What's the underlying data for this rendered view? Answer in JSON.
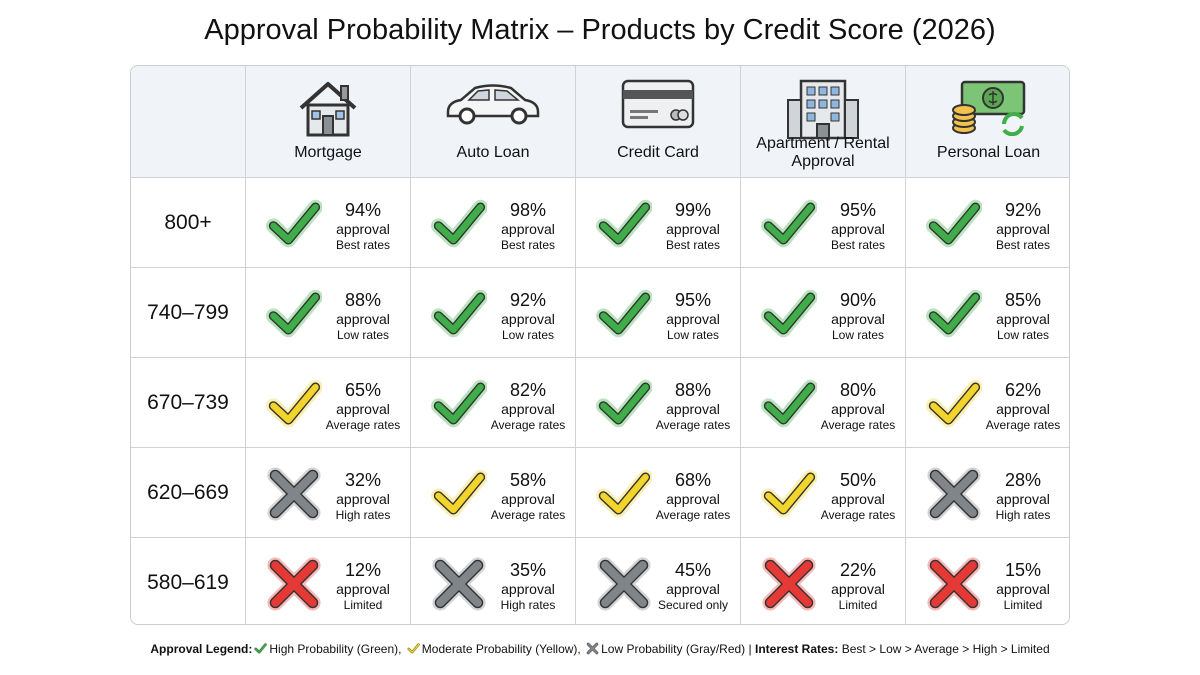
{
  "title": "Approval Probability Matrix – Products by Credit Score (2026)",
  "columns": [
    "Mortgage",
    "Auto Loan",
    "Credit Card",
    "Apartment / Rental Approval",
    "Personal Loan"
  ],
  "rows": [
    {
      "score": "800+",
      "cells": [
        {
          "percent": "94%",
          "label": "approval",
          "rate": "Best rates",
          "icon": "check",
          "color": "#3fae49"
        },
        {
          "percent": "98%",
          "label": "approval",
          "rate": "Best rates",
          "icon": "check",
          "color": "#3fae49"
        },
        {
          "percent": "99%",
          "label": "approval",
          "rate": "Best rates",
          "icon": "check",
          "color": "#3fae49"
        },
        {
          "percent": "95%",
          "label": "approval",
          "rate": "Best rates",
          "icon": "check",
          "color": "#3fae49"
        },
        {
          "percent": "92%",
          "label": "approval",
          "rate": "Best rates",
          "icon": "check",
          "color": "#3fae49"
        }
      ]
    },
    {
      "score": "740–799",
      "cells": [
        {
          "percent": "88%",
          "label": "approval",
          "rate": "Low rates",
          "icon": "check",
          "color": "#3fae49"
        },
        {
          "percent": "92%",
          "label": "approval",
          "rate": "Low rates",
          "icon": "check",
          "color": "#3fae49"
        },
        {
          "percent": "95%",
          "label": "approval",
          "rate": "Low rates",
          "icon": "check",
          "color": "#3fae49"
        },
        {
          "percent": "90%",
          "label": "approval",
          "rate": "Low rates",
          "icon": "check",
          "color": "#3fae49"
        },
        {
          "percent": "85%",
          "label": "approval",
          "rate": "Low rates",
          "icon": "check",
          "color": "#3fae49"
        }
      ]
    },
    {
      "score": "670–739",
      "cells": [
        {
          "percent": "65%",
          "label": "approval",
          "rate": "Average rates",
          "icon": "check",
          "color": "#f2d42a"
        },
        {
          "percent": "82%",
          "label": "approval",
          "rate": "Average rates",
          "icon": "check",
          "color": "#3fae49"
        },
        {
          "percent": "88%",
          "label": "approval",
          "rate": "Average rates",
          "icon": "check",
          "color": "#3fae49"
        },
        {
          "percent": "80%",
          "label": "approval",
          "rate": "Average rates",
          "icon": "check",
          "color": "#3fae49"
        },
        {
          "percent": "62%",
          "label": "approval",
          "rate": "Average rates",
          "icon": "check",
          "color": "#f2d42a"
        }
      ]
    },
    {
      "score": "620–669",
      "cells": [
        {
          "percent": "32%",
          "label": "approval",
          "rate": "High rates",
          "icon": "x",
          "color": "#80858a"
        },
        {
          "percent": "58%",
          "label": "approval",
          "rate": "Average rates",
          "icon": "check",
          "color": "#f2d42a"
        },
        {
          "percent": "68%",
          "label": "approval",
          "rate": "Average rates",
          "icon": "check",
          "color": "#f2d42a"
        },
        {
          "percent": "50%",
          "label": "approval",
          "rate": "Average rates",
          "icon": "check",
          "color": "#f2d42a"
        },
        {
          "percent": "28%",
          "label": "approval",
          "rate": "High rates",
          "icon": "x",
          "color": "#80858a"
        }
      ]
    },
    {
      "score": "580–619",
      "cells": [
        {
          "percent": "12%",
          "label": "approval",
          "rate": "Limited",
          "icon": "x",
          "color": "#e53935"
        },
        {
          "percent": "35%",
          "label": "approval",
          "rate": "High rates",
          "icon": "x",
          "color": "#80858a"
        },
        {
          "percent": "45%",
          "label": "approval",
          "rate": "Secured only",
          "icon": "x",
          "color": "#80858a"
        },
        {
          "percent": "22%",
          "label": "approval",
          "rate": "Limited",
          "icon": "x",
          "color": "#e53935"
        },
        {
          "percent": "15%",
          "label": "approval",
          "rate": "Limited",
          "icon": "x",
          "color": "#e53935"
        }
      ]
    }
  ],
  "legend": {
    "heading": "Approval Legend:",
    "items": [
      {
        "icon": "check",
        "color": "#3fae49",
        "text": "High Probability (Green),"
      },
      {
        "icon": "check",
        "color": "#f2d42a",
        "text": "Moderate Probability (Yellow),"
      },
      {
        "icon": "x",
        "color": "#80858a",
        "text": "Low Probability (Gray/Red)"
      }
    ],
    "separator": "|",
    "rates_heading": "Interest Rates:",
    "rates_text": "Best > Low > Average > High > Limited"
  }
}
